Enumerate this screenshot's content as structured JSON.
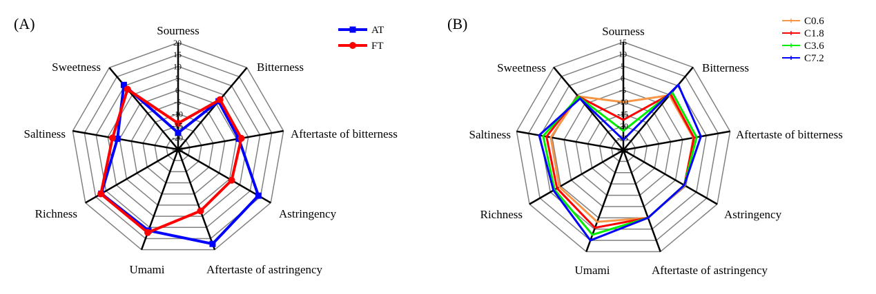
{
  "chart_data": [
    {
      "type": "radar",
      "panel_label": "(A)",
      "axes": [
        "Sourness",
        "Bitterness",
        "Aftertaste of bitterness",
        "Astringency",
        "Aftertaste of astringency",
        "Umami",
        "Richness",
        "Saltiness",
        "Sweetness"
      ],
      "rlim": [
        -25,
        20
      ],
      "ticks": [
        "20",
        "15",
        "10",
        "5",
        "0",
        "-5",
        "-10",
        "-15",
        "-20",
        "-25"
      ],
      "tick_values": [
        20,
        15,
        10,
        5,
        0,
        -5,
        -10,
        -15,
        -20,
        -25
      ],
      "grid": true,
      "legend_placement": "top-right",
      "series": [
        {
          "name": "AT",
          "color": "#0000ff",
          "marker": "square",
          "values": [
            -18,
            1.5,
            0.9,
            14,
            17.4,
            11.4,
            12.3,
            0.9,
            10.5
          ]
        },
        {
          "name": "FT",
          "color": "#ff0000",
          "marker": "circle",
          "values": [
            -14,
            2.4,
            2,
            1,
            2.6,
            12.3,
            12.5,
            3,
            8.1
          ]
        }
      ]
    },
    {
      "type": "radar",
      "panel_label": "(B)",
      "axes": [
        "Sourness",
        "Bitterness",
        "Aftertaste of bitterness",
        "Astringency",
        "Aftertaste of astringency",
        "Umami",
        "Richness",
        "Saltiness",
        "Sweetness"
      ],
      "rlim": [
        -30,
        15
      ],
      "ticks": [
        "15",
        "10",
        "5",
        "0",
        "-5",
        "-10",
        "-15",
        "-20",
        "-25",
        "-30"
      ],
      "tick_values": [
        15,
        10,
        5,
        0,
        -5,
        -10,
        -15,
        -20,
        -25,
        -30
      ],
      "grid": true,
      "legend_placement": "top-right",
      "series": [
        {
          "name": "C0.6",
          "color": "#f79646",
          "values": [
            -10,
            -0.2,
            -0.5,
            -0.5,
            0,
            1.8,
            0.7,
            0.6,
            -0.8
          ]
        },
        {
          "name": "C1.8",
          "color": "#ff0000",
          "values": [
            -17.4,
            0.5,
            -0.2,
            -0.8,
            0,
            4.4,
            1.8,
            2.4,
            -0.8
          ]
        },
        {
          "name": "C3.6",
          "color": "#00ee00",
          "values": [
            -22,
            1.5,
            0.9,
            -0.8,
            0,
            7.5,
            3,
            3.8,
            -1
          ]
        },
        {
          "name": "C7.2",
          "color": "#0000ff",
          "values": [
            -25.7,
            5.5,
            2.7,
            -0.8,
            0,
            10,
            3.5,
            5.5,
            -2
          ]
        }
      ]
    }
  ]
}
